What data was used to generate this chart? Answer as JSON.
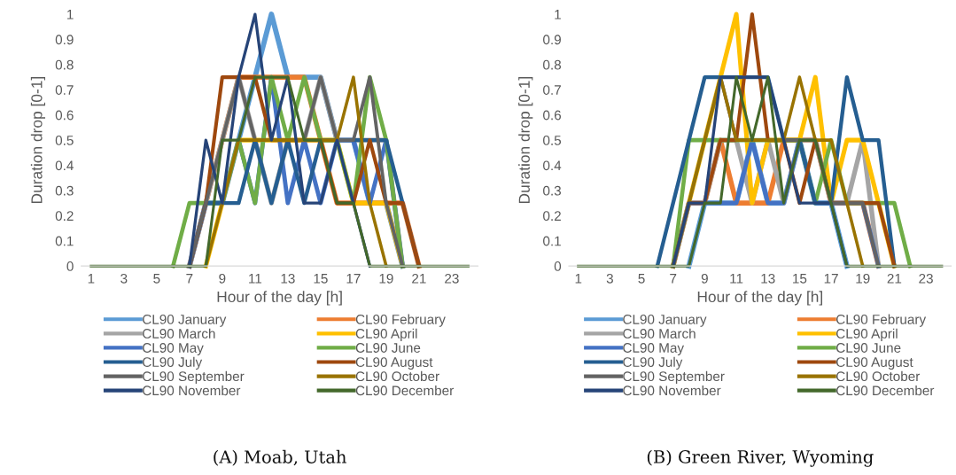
{
  "chart_data": [
    {
      "type": "line",
      "xlabel": "Hour of the day [h]",
      "ylabel": "Duration drop [0-1]",
      "annotations": [
        "(A) Moab, Utah"
      ],
      "legend": "bottom",
      "grid": false,
      "marker": "none",
      "line_style": "solid",
      "x": [
        1,
        2,
        3,
        4,
        5,
        6,
        7,
        8,
        9,
        10,
        11,
        12,
        13,
        14,
        15,
        16,
        17,
        18,
        19,
        20,
        21,
        22,
        23,
        24
      ],
      "xlim": [
        0.4,
        24.6
      ],
      "xticks": [
        1,
        3,
        5,
        7,
        9,
        11,
        13,
        15,
        17,
        19,
        21,
        23
      ],
      "ylim": [
        0,
        1
      ],
      "yticks": [
        0,
        0.1,
        0.2,
        0.3,
        0.4,
        0.5,
        0.6,
        0.7,
        0.8,
        0.9,
        1
      ],
      "series": [
        {
          "name": "CL90 January",
          "color": "#5b9bd5",
          "values": [
            null,
            null,
            null,
            null,
            null,
            null,
            0,
            0.25,
            0.25,
            0.5,
            0.75,
            1,
            0.75,
            0.75,
            0.75,
            0.5,
            0.5,
            0.25,
            0.25,
            0,
            null,
            null,
            null,
            null
          ]
        },
        {
          "name": "CL90 February",
          "color": "#ed7d31",
          "values": [
            null,
            null,
            null,
            null,
            null,
            null,
            0,
            0.25,
            0.5,
            0.75,
            0.75,
            0.75,
            0.75,
            0.75,
            0.5,
            0.25,
            0.25,
            0.25,
            0.25,
            0.25,
            0,
            null,
            null,
            null
          ]
        },
        {
          "name": "CL90 March",
          "color": "#a5a5a5",
          "values": [
            null,
            null,
            null,
            null,
            null,
            null,
            0,
            0.25,
            0.5,
            0.75,
            0.5,
            0.25,
            0.5,
            0.5,
            0.75,
            0.5,
            0.5,
            0.5,
            0.5,
            0,
            null,
            null,
            null,
            null
          ]
        },
        {
          "name": "CL90 April",
          "color": "#ffc000",
          "values": [
            null,
            null,
            null,
            null,
            null,
            null,
            null,
            0,
            0.25,
            0.5,
            0.5,
            0.5,
            0.5,
            0.5,
            0.5,
            0.5,
            0.25,
            0.25,
            0.25,
            0,
            null,
            null,
            null,
            null
          ]
        },
        {
          "name": "CL90 May",
          "color": "#4472c4",
          "values": [
            null,
            null,
            null,
            null,
            null,
            null,
            0,
            0.25,
            0.25,
            0.5,
            0.25,
            0.75,
            0.25,
            0.5,
            0.25,
            0.5,
            0.5,
            0.25,
            0.5,
            0,
            null,
            null,
            null,
            null
          ]
        },
        {
          "name": "CL90 June",
          "color": "#70ad47",
          "values": [
            null,
            null,
            null,
            null,
            null,
            0,
            0.25,
            0.25,
            0.25,
            0.5,
            0.25,
            0.75,
            0.5,
            0.75,
            0.5,
            0.5,
            0.25,
            0.75,
            0.5,
            0,
            null,
            null,
            null,
            null
          ]
        },
        {
          "name": "CL90 July",
          "color": "#255e91",
          "values": [
            null,
            null,
            null,
            null,
            null,
            null,
            0,
            0.25,
            0.25,
            0.25,
            0.5,
            0.25,
            0.5,
            0.25,
            0.5,
            0.5,
            0.5,
            0.5,
            0.5,
            0.25,
            0,
            null,
            null,
            null
          ]
        },
        {
          "name": "CL90 August",
          "color": "#9e480e",
          "values": [
            null,
            null,
            null,
            null,
            null,
            null,
            0,
            0.25,
            0.75,
            0.75,
            0.75,
            0.5,
            0.5,
            0.5,
            0.5,
            0.25,
            0.25,
            0.5,
            0.25,
            0.25,
            0,
            null,
            null,
            null
          ]
        },
        {
          "name": "CL90 September",
          "color": "#636363",
          "values": [
            null,
            null,
            null,
            null,
            null,
            null,
            0,
            0.25,
            0.5,
            0.75,
            0.5,
            0.5,
            0.5,
            0.5,
            0.75,
            0.5,
            0.5,
            0.75,
            0.25,
            0,
            null,
            null,
            null,
            null
          ]
        },
        {
          "name": "CL90 October",
          "color": "#997300",
          "values": [
            null,
            null,
            null,
            null,
            null,
            null,
            null,
            0,
            0.25,
            0.5,
            0.5,
            0.5,
            0.5,
            0.5,
            0.5,
            0.5,
            0.75,
            0.25,
            0,
            null,
            null,
            null,
            null,
            null
          ]
        },
        {
          "name": "CL90 November",
          "color": "#264478",
          "values": [
            null,
            null,
            null,
            null,
            null,
            null,
            0,
            0.5,
            0.25,
            0.75,
            1,
            0.5,
            0.75,
            0.25,
            0.25,
            0.5,
            0.25,
            0,
            null,
            null,
            null,
            null,
            null,
            null
          ]
        },
        {
          "name": "CL90 December",
          "color": "#43682b",
          "values": [
            0,
            0,
            0,
            0,
            0,
            0,
            0,
            0,
            0.5,
            0.5,
            0.75,
            0.75,
            0.75,
            0.5,
            0.5,
            0.25,
            0.25,
            0,
            0,
            0,
            0,
            0,
            0,
            0
          ]
        }
      ]
    },
    {
      "type": "line",
      "xlabel": "Hour of the day [h]",
      "ylabel": "Duration drop [0-1]",
      "annotations": [
        "(B) Green River, Wyoming"
      ],
      "legend": "bottom",
      "grid": false,
      "marker": "none",
      "line_style": "solid",
      "x": [
        1,
        2,
        3,
        4,
        5,
        6,
        7,
        8,
        9,
        10,
        11,
        12,
        13,
        14,
        15,
        16,
        17,
        18,
        19,
        20,
        21,
        22,
        23,
        24
      ],
      "xlim": [
        0.4,
        24.6
      ],
      "xticks": [
        1,
        3,
        5,
        7,
        9,
        11,
        13,
        15,
        17,
        19,
        21,
        23
      ],
      "ylim": [
        0,
        1
      ],
      "yticks": [
        0,
        0.1,
        0.2,
        0.3,
        0.4,
        0.5,
        0.6,
        0.7,
        0.8,
        0.9,
        1
      ],
      "series": [
        {
          "name": "CL90 January",
          "color": "#5b9bd5",
          "values": [
            null,
            null,
            null,
            null,
            null,
            null,
            null,
            0,
            0.25,
            0.25,
            0.25,
            0.5,
            0.25,
            0.25,
            0.5,
            0.25,
            0.25,
            0,
            null,
            null,
            null,
            null,
            null,
            null
          ]
        },
        {
          "name": "CL90 February",
          "color": "#ed7d31",
          "values": [
            null,
            null,
            null,
            null,
            null,
            null,
            0,
            0.25,
            0.25,
            0.5,
            0.25,
            0.25,
            0.25,
            0.5,
            0.5,
            0.5,
            0.25,
            0.25,
            0.25,
            0,
            null,
            null,
            null,
            null
          ]
        },
        {
          "name": "CL90 March",
          "color": "#a5a5a5",
          "values": [
            null,
            null,
            null,
            null,
            null,
            null,
            0,
            0.25,
            0.25,
            0.5,
            0.5,
            0.25,
            0.5,
            0.25,
            0.5,
            0.5,
            0.25,
            0.25,
            0.5,
            0,
            null,
            null,
            null,
            null
          ]
        },
        {
          "name": "CL90 April",
          "color": "#ffc000",
          "values": [
            null,
            null,
            null,
            null,
            null,
            null,
            0,
            0.25,
            0.5,
            0.75,
            1,
            0.25,
            0.5,
            0.5,
            0.5,
            0.75,
            0.25,
            0.5,
            0.5,
            0.25,
            0,
            null,
            null,
            null
          ]
        },
        {
          "name": "CL90 May",
          "color": "#4472c4",
          "values": [
            null,
            null,
            null,
            null,
            null,
            null,
            0,
            0.25,
            0.25,
            0.25,
            0.25,
            0.5,
            0.25,
            0.25,
            0.5,
            0.25,
            0.25,
            0.25,
            0.25,
            0,
            null,
            null,
            null,
            null
          ]
        },
        {
          "name": "CL90 June",
          "color": "#70ad47",
          "values": [
            null,
            null,
            null,
            null,
            null,
            null,
            0,
            0.5,
            0.5,
            0.5,
            0.5,
            0.5,
            0.5,
            0.5,
            0.5,
            0.25,
            0.5,
            0.25,
            0.25,
            0.25,
            0.25,
            0,
            null,
            null
          ]
        },
        {
          "name": "CL90 July",
          "color": "#255e91",
          "values": [
            null,
            null,
            null,
            null,
            null,
            0,
            0.25,
            0.5,
            0.75,
            0.75,
            0.75,
            0.75,
            0.75,
            0.5,
            0.5,
            0.25,
            0.25,
            0.75,
            0.5,
            0.5,
            0,
            null,
            null,
            null
          ]
        },
        {
          "name": "CL90 August",
          "color": "#9e480e",
          "values": [
            null,
            null,
            null,
            null,
            null,
            null,
            0,
            0.25,
            0.25,
            0.5,
            0.5,
            1,
            0.5,
            0.5,
            0.25,
            0.5,
            0.25,
            0.25,
            0.25,
            0.25,
            0,
            null,
            null,
            null
          ]
        },
        {
          "name": "CL90 September",
          "color": "#636363",
          "values": [
            null,
            null,
            null,
            null,
            null,
            null,
            0,
            0.25,
            0.5,
            0.75,
            0.5,
            0.5,
            0.5,
            0.5,
            0.5,
            0.5,
            0.25,
            0.25,
            0.25,
            0,
            null,
            null,
            null,
            null
          ]
        },
        {
          "name": "CL90 October",
          "color": "#997300",
          "values": [
            null,
            null,
            null,
            null,
            null,
            null,
            0,
            0.25,
            0.5,
            0.75,
            0.5,
            0.5,
            0.5,
            0.5,
            0.75,
            0.5,
            0.5,
            0.25,
            0,
            null,
            null,
            null,
            null,
            null
          ]
        },
        {
          "name": "CL90 November",
          "color": "#264478",
          "values": [
            null,
            null,
            null,
            null,
            null,
            null,
            0,
            0.25,
            0.25,
            0.75,
            0.75,
            0.75,
            0.75,
            0.5,
            0.25,
            0.25,
            0.25,
            0,
            null,
            null,
            null,
            null,
            null,
            null
          ]
        },
        {
          "name": "CL90 December",
          "color": "#43682b",
          "values": [
            0,
            0,
            0,
            0,
            0,
            0,
            0,
            0,
            0.25,
            0.25,
            0.75,
            0.5,
            0.75,
            0.25,
            0.5,
            0.5,
            0.25,
            0,
            0,
            0,
            0,
            0,
            0,
            0
          ]
        }
      ]
    }
  ]
}
